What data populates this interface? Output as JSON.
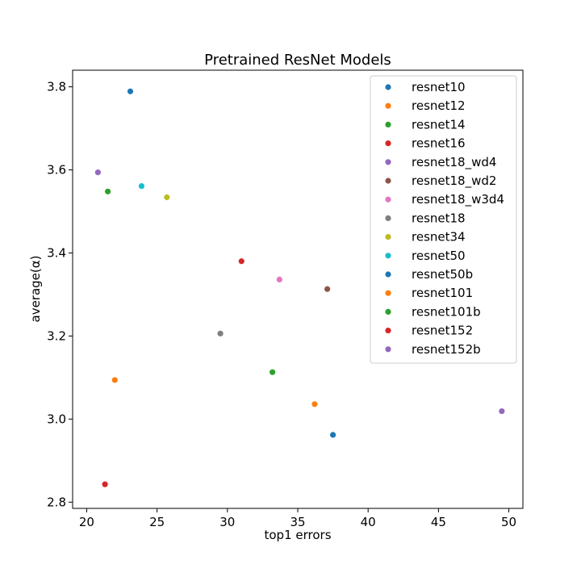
{
  "chart_data": {
    "type": "scatter",
    "title": "Pretrained ResNet Models",
    "xlabel": "top1 errors",
    "ylabel": "average(α)",
    "xlim": [
      19,
      51
    ],
    "ylim": [
      2.785,
      3.84
    ],
    "x_ticks": [
      20,
      25,
      30,
      35,
      40,
      45,
      50
    ],
    "y_ticks": [
      2.8,
      3.0,
      3.2,
      3.4,
      3.6,
      3.8
    ],
    "x_tick_labels": [
      "20",
      "25",
      "30",
      "35",
      "40",
      "45",
      "50"
    ],
    "y_tick_labels": [
      "2.8",
      "3.0",
      "3.2",
      "3.4",
      "3.6",
      "3.8"
    ],
    "grid": false,
    "legend_position": "top-right",
    "series": [
      {
        "name": "resnet10",
        "color": "#1f77b4",
        "x": 23.1,
        "y": 3.789
      },
      {
        "name": "resnet12",
        "color": "#ff7f0e",
        "x": 22.0,
        "y": 3.094
      },
      {
        "name": "resnet14",
        "color": "#2ca02c",
        "x": 21.5,
        "y": 3.548
      },
      {
        "name": "resnet16",
        "color": "#d62728",
        "x": 21.3,
        "y": 2.843
      },
      {
        "name": "resnet18_wd4",
        "color": "#9467bd",
        "x": 20.8,
        "y": 3.594
      },
      {
        "name": "resnet18_wd2",
        "color": "#8c564b",
        "x": 37.1,
        "y": 3.313
      },
      {
        "name": "resnet18_w3d4",
        "color": "#e377c2",
        "x": 33.7,
        "y": 3.336
      },
      {
        "name": "resnet18",
        "color": "#7f7f7f",
        "x": 29.5,
        "y": 3.206
      },
      {
        "name": "resnet34",
        "color": "#bcbd22",
        "x": 25.7,
        "y": 3.534
      },
      {
        "name": "resnet50",
        "color": "#17becf",
        "x": 23.9,
        "y": 3.561
      },
      {
        "name": "resnet50b",
        "color": "#1f77b4",
        "x": 37.5,
        "y": 2.962
      },
      {
        "name": "resnet101",
        "color": "#ff7f0e",
        "x": 36.2,
        "y": 3.036
      },
      {
        "name": "resnet101b",
        "color": "#2ca02c",
        "x": 33.2,
        "y": 3.113
      },
      {
        "name": "resnet152",
        "color": "#d62728",
        "x": 31.0,
        "y": 3.38
      },
      {
        "name": "resnet152b",
        "color": "#9467bd",
        "x": 49.5,
        "y": 3.019
      }
    ]
  }
}
